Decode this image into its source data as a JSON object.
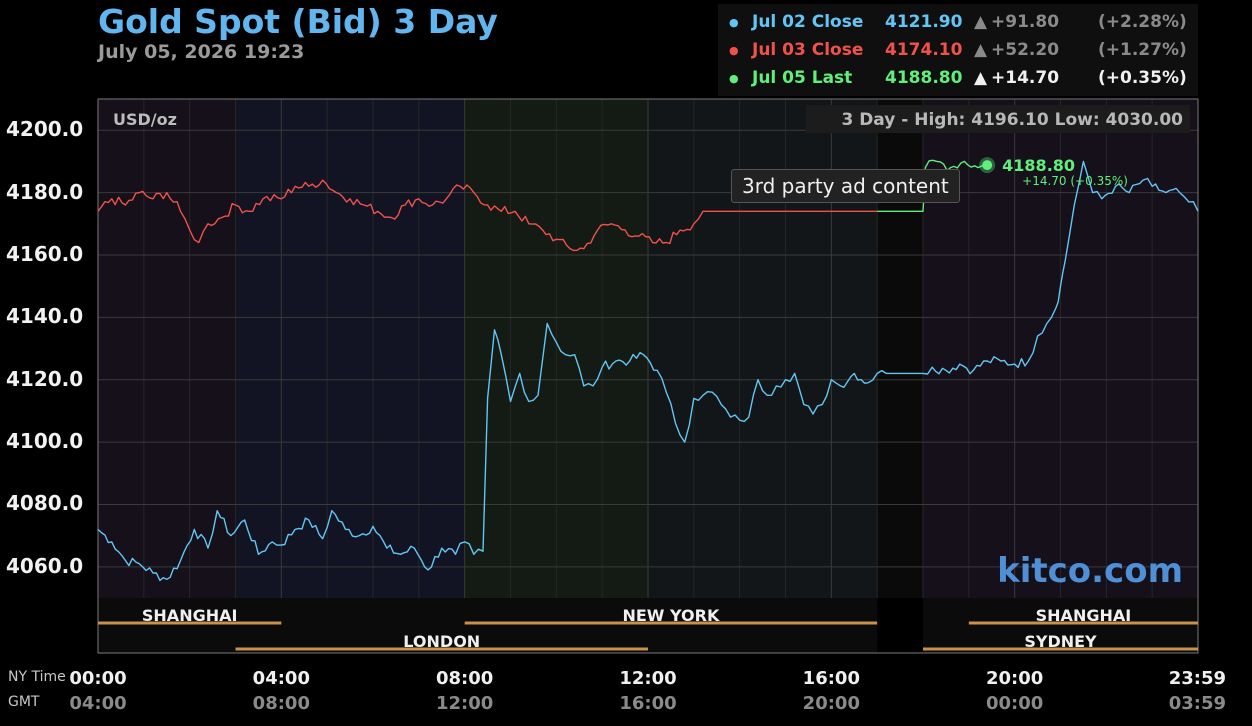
{
  "header": {
    "title": "Gold Spot (Bid) 3 Day",
    "timestamp": "July 05, 2026 19:23"
  },
  "legend": [
    {
      "label": "Jul 02 Close",
      "price": "4121.90",
      "arrow": "▲",
      "change": "+91.80",
      "pct": "(+2.28%)",
      "color": "#62c6f5",
      "value_color": "#62c6f5",
      "muted": true
    },
    {
      "label": "Jul 03 Close",
      "price": "4174.10",
      "arrow": "▲",
      "change": "+52.20",
      "pct": "(+1.27%)",
      "color": "#f0524a",
      "value_color": "#f0524a",
      "muted": true
    },
    {
      "label": "Jul 05 Last",
      "price": "4188.80",
      "arrow": "▲",
      "change": "+14.70",
      "pct": "(+0.35%)",
      "color": "#5ef07a",
      "value_color": "#5ef07a",
      "muted": false
    }
  ],
  "chart_data": {
    "type": "line",
    "unit_label": "USD/oz",
    "summary": "3 Day - High: 4196.10  Low: 4030.00",
    "ylim": [
      4050,
      4210
    ],
    "y_ticks": [
      "4200.0",
      "4180.0",
      "4160.0",
      "4140.0",
      "4120.0",
      "4100.0",
      "4080.0",
      "4060.0"
    ],
    "y_tick_values": [
      4200,
      4180,
      4160,
      4140,
      4120,
      4100,
      4080,
      4060
    ],
    "xlim_hours": [
      0,
      24
    ],
    "x_labels_ny": [
      "00:00",
      "04:00",
      "08:00",
      "12:00",
      "16:00",
      "20:00",
      "23:59"
    ],
    "x_labels_gmt": [
      "04:00",
      "08:00",
      "12:00",
      "16:00",
      "20:00",
      "00:00",
      "03:59"
    ],
    "x_label_hours": [
      0,
      4,
      8,
      12,
      16,
      20,
      24
    ],
    "ny_time_label": "NY Time",
    "gmt_label": "GMT",
    "last_point": {
      "price": "4188.80",
      "change": "+14.70 (+0.35%)",
      "hour": 19.4,
      "value": 4188.8
    },
    "watermark": "kitco.com",
    "sessions_row1": [
      {
        "name": "SHANGHAI",
        "start": 0,
        "end": 4
      },
      {
        "name": "NEW YORK",
        "start": 8,
        "end": 17
      },
      {
        "name": "SHANGHAI",
        "start": 19,
        "end": 24
      }
    ],
    "sessions_row2": [
      {
        "name": "LONDON",
        "start": 3,
        "end": 12
      },
      {
        "name": "SYDNEY",
        "start": 18,
        "end": 24
      }
    ],
    "series": [
      {
        "name": "Jul 02",
        "color": "#62c6f5",
        "points": [
          [
            0,
            4072
          ],
          [
            0.3,
            4068
          ],
          [
            0.6,
            4062
          ],
          [
            0.9,
            4061
          ],
          [
            1.2,
            4058
          ],
          [
            1.5,
            4056
          ],
          [
            1.8,
            4062
          ],
          [
            2.1,
            4072
          ],
          [
            2.4,
            4066
          ],
          [
            2.6,
            4078
          ],
          [
            2.9,
            4070
          ],
          [
            3.2,
            4075
          ],
          [
            3.5,
            4064
          ],
          [
            3.8,
            4068
          ],
          [
            4.0,
            4067
          ],
          [
            4.3,
            4072
          ],
          [
            4.6,
            4075
          ],
          [
            4.9,
            4069
          ],
          [
            5.1,
            4078
          ],
          [
            5.4,
            4072
          ],
          [
            5.7,
            4070
          ],
          [
            6.0,
            4073
          ],
          [
            6.3,
            4066
          ],
          [
            6.6,
            4064
          ],
          [
            6.9,
            4066
          ],
          [
            7.2,
            4059
          ],
          [
            7.5,
            4066
          ],
          [
            7.8,
            4064
          ],
          [
            8.0,
            4068
          ],
          [
            8.2,
            4064
          ],
          [
            8.4,
            4065
          ],
          [
            8.5,
            4114
          ],
          [
            8.65,
            4136
          ],
          [
            8.8,
            4128
          ],
          [
            9.0,
            4113
          ],
          [
            9.2,
            4122
          ],
          [
            9.4,
            4113
          ],
          [
            9.6,
            4115
          ],
          [
            9.8,
            4138
          ],
          [
            10.0,
            4132
          ],
          [
            10.2,
            4128
          ],
          [
            10.4,
            4128
          ],
          [
            10.6,
            4118
          ],
          [
            10.8,
            4118
          ],
          [
            11.0,
            4124
          ],
          [
            11.3,
            4126
          ],
          [
            11.6,
            4126
          ],
          [
            11.9,
            4128
          ],
          [
            12.2,
            4123
          ],
          [
            12.4,
            4116
          ],
          [
            12.6,
            4106
          ],
          [
            12.8,
            4100
          ],
          [
            13.0,
            4114
          ],
          [
            13.2,
            4115
          ],
          [
            13.4,
            4116
          ],
          [
            13.6,
            4112
          ],
          [
            13.8,
            4108
          ],
          [
            14.0,
            4107
          ],
          [
            14.2,
            4108
          ],
          [
            14.4,
            4120
          ],
          [
            14.6,
            4115
          ],
          [
            14.8,
            4118
          ],
          [
            15.0,
            4120
          ],
          [
            15.2,
            4122
          ],
          [
            15.4,
            4112
          ],
          [
            15.6,
            4109
          ],
          [
            15.8,
            4112
          ],
          [
            16.0,
            4120
          ],
          [
            16.2,
            4118
          ],
          [
            16.5,
            4122
          ],
          [
            16.8,
            4119
          ],
          [
            17.0,
            4122
          ],
          [
            17.2,
            4122
          ],
          [
            18.0,
            4122
          ],
          [
            18.2,
            4124
          ],
          [
            18.5,
            4123
          ],
          [
            18.8,
            4125
          ],
          [
            19.1,
            4123
          ],
          [
            19.4,
            4126
          ],
          [
            19.7,
            4126
          ],
          [
            20.0,
            4125
          ],
          [
            20.3,
            4126
          ],
          [
            20.5,
            4134
          ],
          [
            20.7,
            4138
          ],
          [
            20.9,
            4143
          ],
          [
            21.0,
            4150
          ],
          [
            21.1,
            4158
          ],
          [
            21.3,
            4176
          ],
          [
            21.5,
            4190
          ],
          [
            21.7,
            4180
          ],
          [
            21.9,
            4178
          ],
          [
            22.2,
            4182
          ],
          [
            22.5,
            4180
          ],
          [
            22.8,
            4184
          ],
          [
            23.0,
            4182
          ],
          [
            23.3,
            4180
          ],
          [
            23.6,
            4180
          ],
          [
            23.8,
            4177
          ],
          [
            24.0,
            4174
          ]
        ]
      },
      {
        "name": "Jul 03",
        "color": "#f0524a",
        "points": [
          [
            0,
            4174
          ],
          [
            0.3,
            4178
          ],
          [
            0.6,
            4176
          ],
          [
            0.9,
            4180
          ],
          [
            1.2,
            4178
          ],
          [
            1.5,
            4180
          ],
          [
            1.8,
            4174
          ],
          [
            2.0,
            4168
          ],
          [
            2.2,
            4164
          ],
          [
            2.4,
            4170
          ],
          [
            2.7,
            4172
          ],
          [
            3.0,
            4176
          ],
          [
            3.3,
            4174
          ],
          [
            3.6,
            4178
          ],
          [
            4.0,
            4178
          ],
          [
            4.3,
            4182
          ],
          [
            4.6,
            4182
          ],
          [
            4.9,
            4184
          ],
          [
            5.2,
            4180
          ],
          [
            5.5,
            4178
          ],
          [
            5.8,
            4176
          ],
          [
            6.1,
            4174
          ],
          [
            6.4,
            4172
          ],
          [
            6.7,
            4176
          ],
          [
            7.0,
            4178
          ],
          [
            7.3,
            4176
          ],
          [
            7.6,
            4178
          ],
          [
            7.9,
            4182
          ],
          [
            8.2,
            4180
          ],
          [
            8.5,
            4176
          ],
          [
            8.8,
            4174
          ],
          [
            9.1,
            4174
          ],
          [
            9.4,
            4170
          ],
          [
            9.7,
            4168
          ],
          [
            10.0,
            4165
          ],
          [
            10.3,
            4162
          ],
          [
            10.6,
            4162
          ],
          [
            10.9,
            4168
          ],
          [
            11.2,
            4170
          ],
          [
            11.5,
            4168
          ],
          [
            11.8,
            4166
          ],
          [
            12.1,
            4164
          ],
          [
            12.4,
            4164
          ],
          [
            12.7,
            4168
          ],
          [
            13.0,
            4170
          ],
          [
            13.2,
            4174
          ],
          [
            17.0,
            4174
          ]
        ]
      },
      {
        "name": "Jul 05",
        "color": "#5ef07a",
        "points": [
          [
            17.0,
            4174
          ],
          [
            18.0,
            4174
          ],
          [
            18.05,
            4188
          ],
          [
            18.3,
            4190
          ],
          [
            18.6,
            4188
          ],
          [
            18.9,
            4190
          ],
          [
            19.2,
            4188
          ],
          [
            19.4,
            4188.8
          ]
        ]
      }
    ]
  },
  "overlay": {
    "tooltip": "3rd party ad content"
  }
}
